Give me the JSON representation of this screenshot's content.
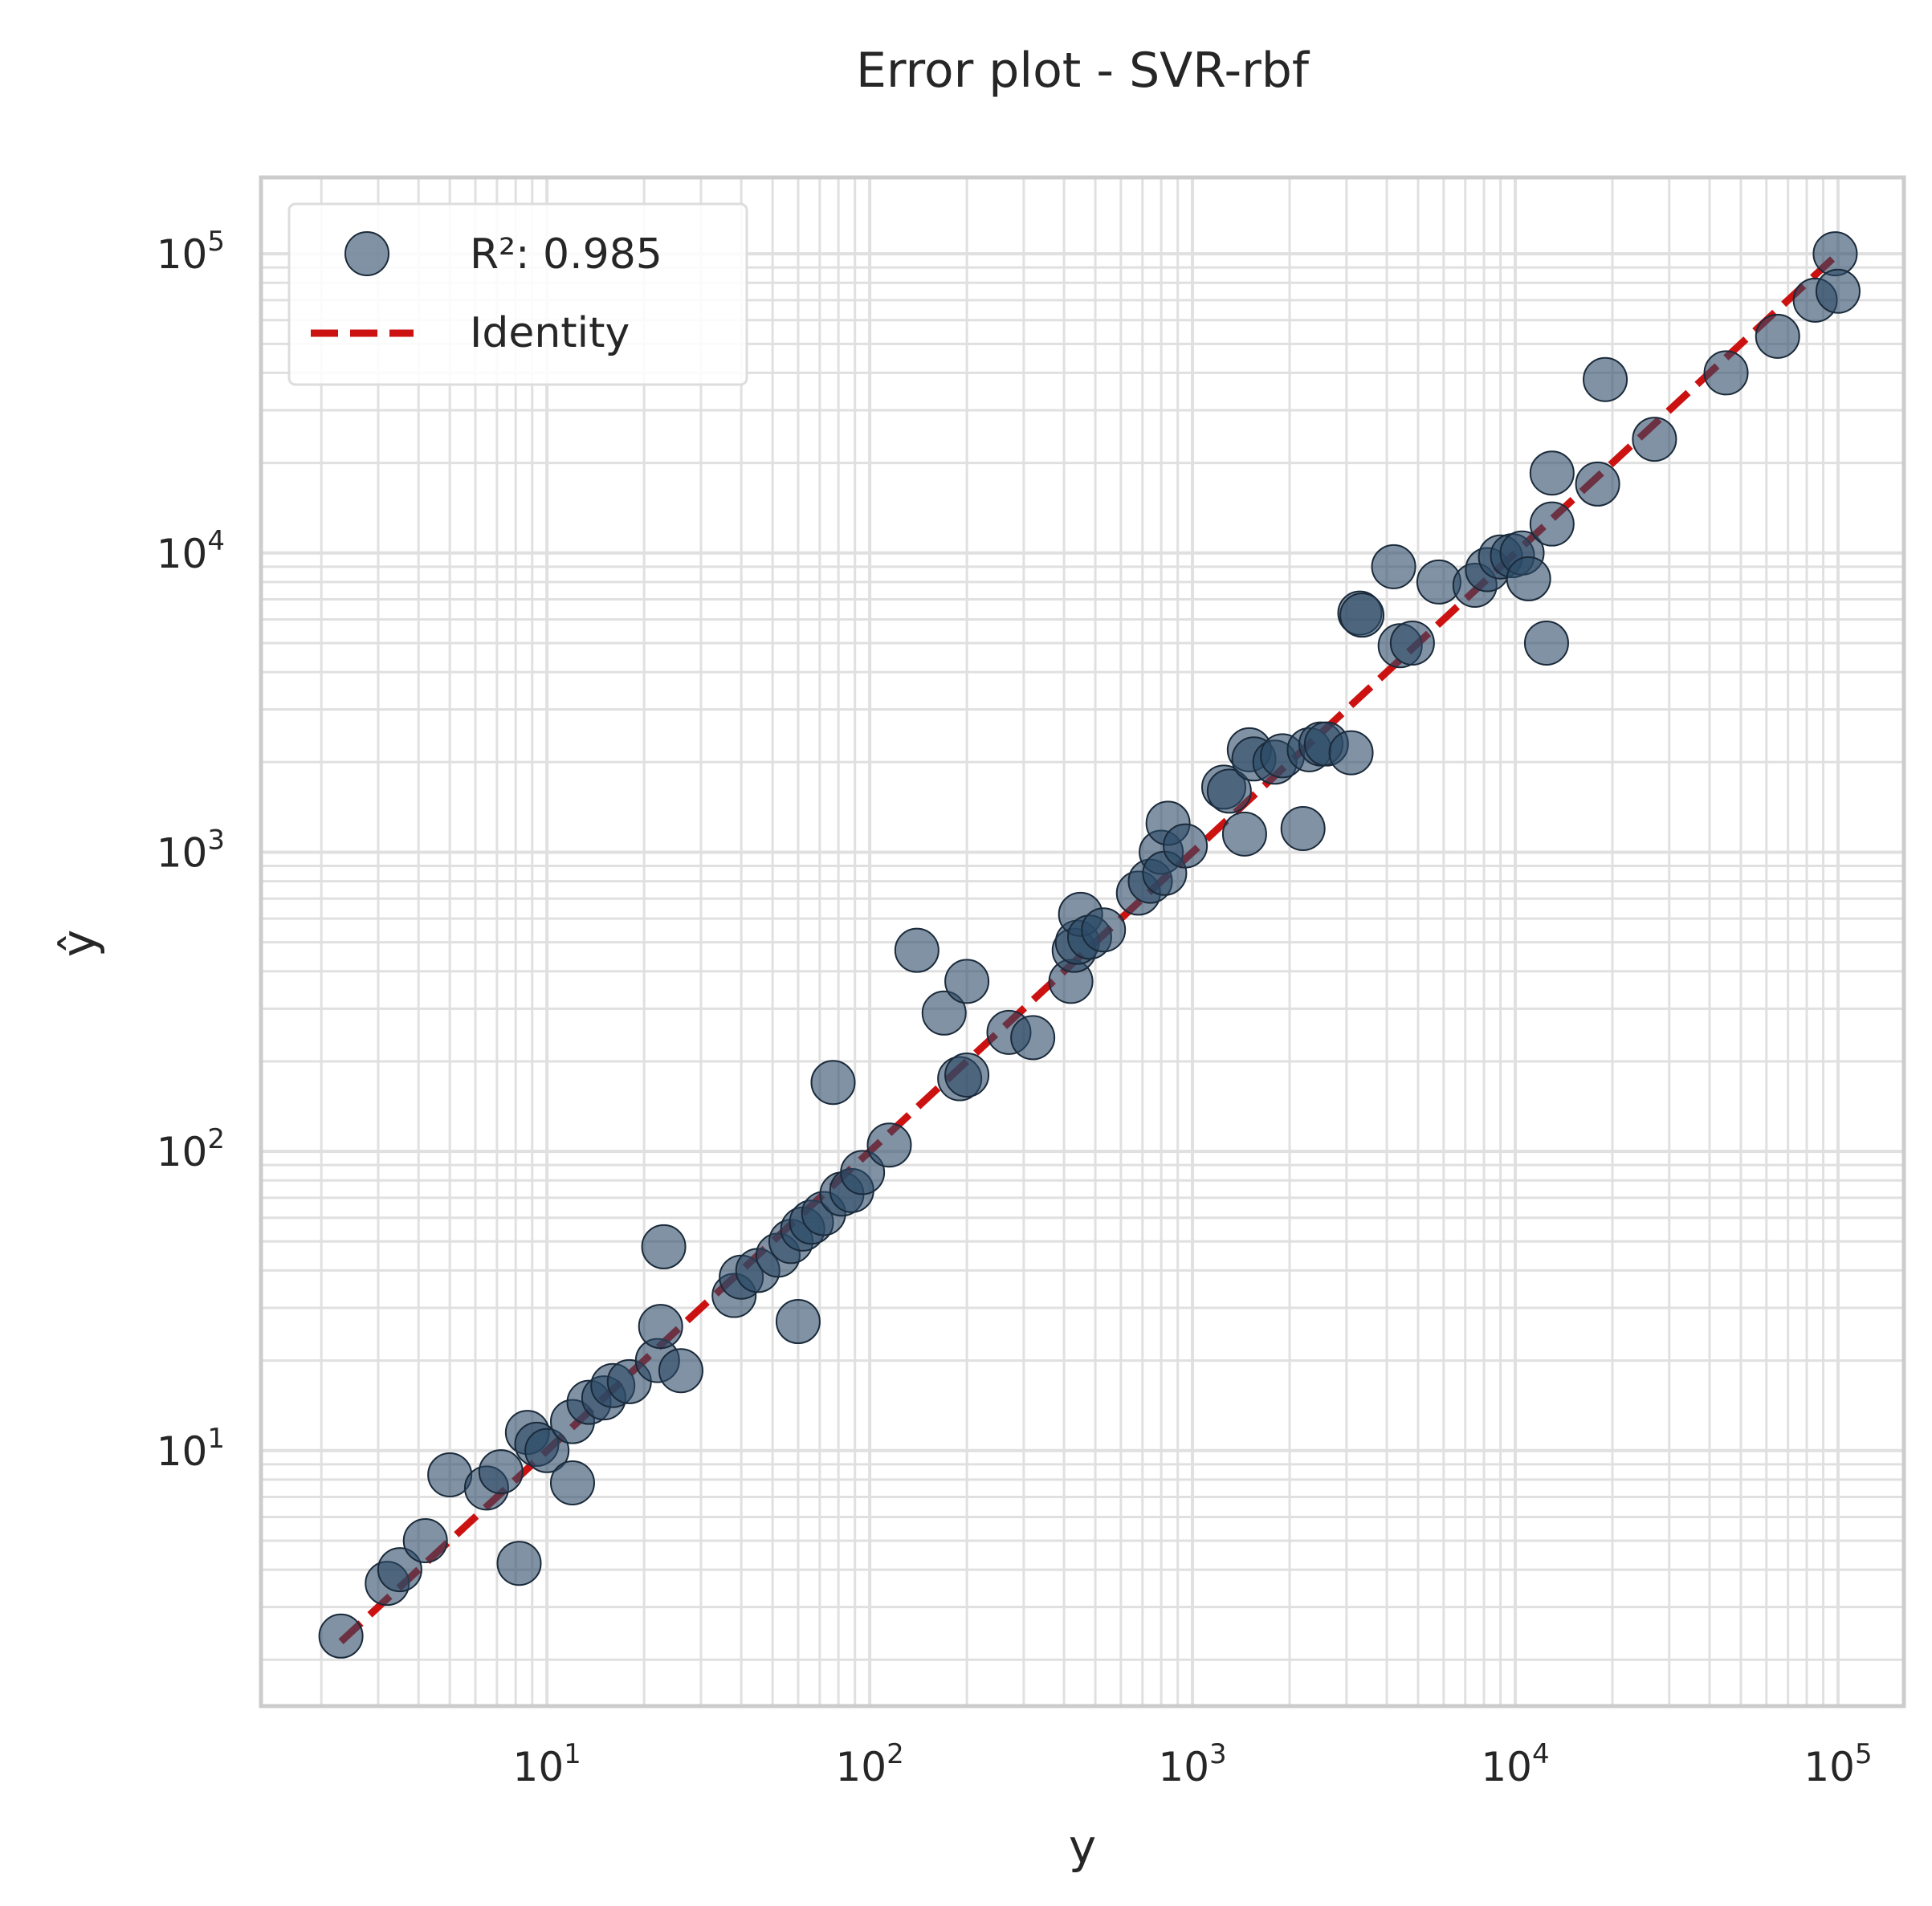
{
  "chart_data": {
    "type": "scatter",
    "title": "Error plot - SVR-rbf",
    "xlabel": "y",
    "ylabel": "ŷ",
    "xscale": "log",
    "yscale": "log",
    "xlim": [
      1.3,
      160000
    ],
    "ylim": [
      1.4,
      180000
    ],
    "grid": true,
    "legend_position": "top-left",
    "tick_base": "10",
    "x_ticks": [
      {
        "value": 10,
        "exp": "1"
      },
      {
        "value": 100,
        "exp": "2"
      },
      {
        "value": 1000,
        "exp": "3"
      },
      {
        "value": 10000,
        "exp": "4"
      },
      {
        "value": 100000,
        "exp": "5"
      }
    ],
    "y_ticks": [
      {
        "value": 10,
        "exp": "1"
      },
      {
        "value": 100,
        "exp": "2"
      },
      {
        "value": 1000,
        "exp": "3"
      },
      {
        "value": 10000,
        "exp": "4"
      },
      {
        "value": 100000,
        "exp": "5"
      }
    ],
    "colors": {
      "points": "#2c4a66",
      "point_edge": "#1a2a3a",
      "identity": "#cc1111",
      "grid": "#e0e0e0",
      "frame": "#cccccc"
    },
    "series": [
      {
        "name": "R²: 0.985",
        "kind": "scatter",
        "points": [
          [
            2.3,
            2.4
          ],
          [
            3.2,
            3.6
          ],
          [
            3.5,
            4.0
          ],
          [
            4.2,
            5.0
          ],
          [
            5.0,
            8.3
          ],
          [
            6.5,
            7.5
          ],
          [
            7.2,
            8.5
          ],
          [
            8.2,
            4.2
          ],
          [
            8.7,
            11.5
          ],
          [
            9.3,
            10.5
          ],
          [
            10.0,
            10.0
          ],
          [
            12.0,
            7.8
          ],
          [
            12.0,
            12.5
          ],
          [
            13.5,
            14.5
          ],
          [
            15.0,
            15.0
          ],
          [
            16.0,
            16.5
          ],
          [
            18.0,
            17.0
          ],
          [
            22.0,
            20.0
          ],
          [
            22.5,
            26.0
          ],
          [
            23.0,
            48.0
          ],
          [
            26.0,
            18.5
          ],
          [
            38.0,
            33.0
          ],
          [
            40.0,
            38.0
          ],
          [
            45.0,
            40.0
          ],
          [
            52.0,
            45.0
          ],
          [
            57.0,
            50.0
          ],
          [
            60.0,
            27.0
          ],
          [
            62.0,
            55.0
          ],
          [
            66.0,
            58.0
          ],
          [
            72.0,
            62.0
          ],
          [
            77.0,
            170.0
          ],
          [
            82.0,
            72.0
          ],
          [
            88.0,
            74.0
          ],
          [
            95.0,
            85.0
          ],
          [
            115.0,
            105.0
          ],
          [
            140.0,
            470.0
          ],
          [
            170.0,
            290.0
          ],
          [
            190.0,
            175.0
          ],
          [
            200.0,
            180.0
          ],
          [
            200.0,
            370.0
          ],
          [
            270.0,
            250.0
          ],
          [
            320.0,
            240.0
          ],
          [
            420.0,
            370.0
          ],
          [
            430.0,
            470.0
          ],
          [
            440.0,
            500.0
          ],
          [
            450.0,
            620.0
          ],
          [
            480.0,
            520.0
          ],
          [
            530.0,
            550.0
          ],
          [
            680.0,
            730.0
          ],
          [
            740.0,
            800.0
          ],
          [
            800.0,
            1000.0
          ],
          [
            820.0,
            850.0
          ],
          [
            840.0,
            1250.0
          ],
          [
            950.0,
            1050.0
          ],
          [
            1250.0,
            1650.0
          ],
          [
            1300.0,
            1600.0
          ],
          [
            1450.0,
            1150.0
          ],
          [
            1500.0,
            2200.0
          ],
          [
            1550.0,
            2050.0
          ],
          [
            1800.0,
            2000.0
          ],
          [
            1900.0,
            2100.0
          ],
          [
            2200.0,
            1200.0
          ],
          [
            2300.0,
            2200.0
          ],
          [
            2500.0,
            2300.0
          ],
          [
            2600.0,
            2300.0
          ],
          [
            3100.0,
            2150.0
          ],
          [
            3300.0,
            6300.0
          ],
          [
            3350.0,
            6200.0
          ],
          [
            4200.0,
            9000.0
          ],
          [
            4400.0,
            4900.0
          ],
          [
            4800.0,
            5000.0
          ],
          [
            5800.0,
            8000.0
          ],
          [
            7500.0,
            7800.0
          ],
          [
            8200.0,
            8800.0
          ],
          [
            9000.0,
            9700.0
          ],
          [
            9800.0,
            9800.0
          ],
          [
            10500.0,
            10000.0
          ],
          [
            11000.0,
            8200.0
          ],
          [
            12500.0,
            5000.0
          ],
          [
            13000.0,
            12500.0
          ],
          [
            13000.0,
            18500.0
          ],
          [
            18000.0,
            17000.0
          ],
          [
            19000.0,
            38000.0
          ],
          [
            27000.0,
            24000.0
          ],
          [
            45000.0,
            40000.0
          ],
          [
            65000.0,
            53000.0
          ],
          [
            85000.0,
            70000.0
          ],
          [
            98000.0,
            100000.0
          ],
          [
            100000.0,
            75000.0
          ]
        ]
      },
      {
        "name": "Identity",
        "kind": "line",
        "style": "dashed",
        "x": [
          2.3,
          100000
        ],
        "y": [
          2.3,
          100000
        ]
      }
    ]
  }
}
